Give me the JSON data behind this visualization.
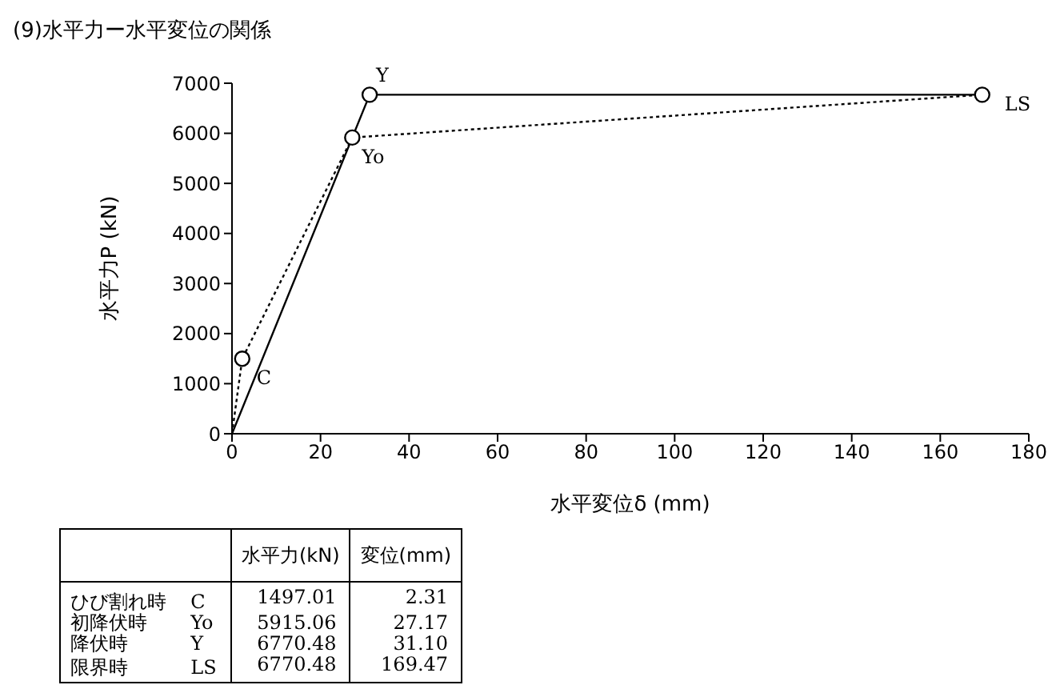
{
  "chart_data": [
    {
      "type": "line",
      "title": "(9)水平力ー水平変位の関係",
      "xlabel": "水平変位δ (mm)",
      "ylabel": "水平力P (kN)",
      "xlim": [
        0,
        180
      ],
      "xticks": [
        0,
        20,
        40,
        60,
        80,
        100,
        120,
        140,
        160,
        180
      ],
      "ylim": [
        0,
        7000
      ],
      "yticks": [
        0,
        1000,
        2000,
        3000,
        4000,
        5000,
        6000,
        7000
      ],
      "series": [
        {
          "type": "line",
          "color": "#000000",
          "line_style": "solid",
          "x": [
            0,
            31.1,
            169.47
          ],
          "values": [
            0,
            6770.48,
            6770.48
          ]
        },
        {
          "type": "line",
          "color": "#000000",
          "line_style": "dotted",
          "x": [
            0,
            2.31,
            27.17,
            169.47
          ],
          "values": [
            0,
            1497.01,
            5915.06,
            6770.48
          ]
        },
        {
          "type": "scatter",
          "color": "#000000",
          "marker": "circle",
          "x": [
            2.31,
            27.17,
            31.1,
            169.47
          ],
          "values": [
            1497.01,
            5915.06,
            6770.48,
            6770.48
          ]
        }
      ],
      "annotations": [
        {
          "text": "C",
          "x": 2.31,
          "y": 1497.01
        },
        {
          "text": "Yo",
          "x": 27.17,
          "y": 5915.06
        },
        {
          "text": "Y",
          "x": 31.1,
          "y": 6770.48
        },
        {
          "text": "LS",
          "x": 169.47,
          "y": 6770.48
        }
      ]
    },
    {
      "type": "other",
      "data_labels": true,
      "categories": [
        "ひび割れ時",
        "初降伏時",
        "降伏時",
        "限界時"
      ],
      "y2_categories": [
        "C",
        "Yo",
        "Y",
        "LS"
      ],
      "series": [
        {
          "name": "水平力(kN)",
          "values": [
            1497.01,
            5915.06,
            6770.48,
            6770.48
          ]
        },
        {
          "name": "変位(mm)",
          "values": [
            2.31,
            27.17,
            31.1,
            169.47
          ],
          "value_labels": [
            "2.31",
            "27.17",
            "31.10",
            "169.47"
          ]
        }
      ]
    }
  ]
}
